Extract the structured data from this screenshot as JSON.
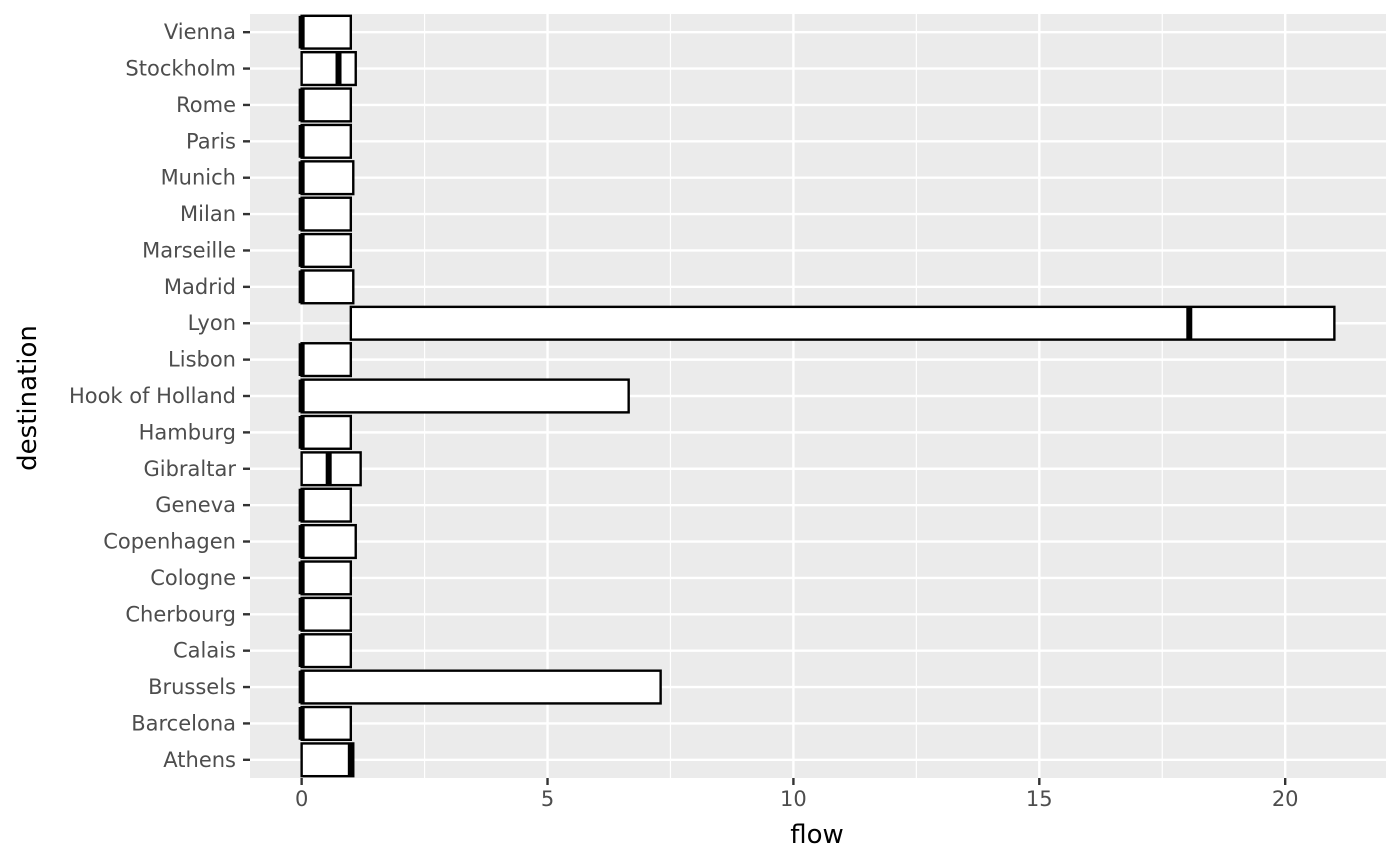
{
  "chart_data": {
    "type": "boxplot",
    "orientation": "horizontal",
    "xlabel": "flow",
    "ylabel": "destination",
    "xlim": [
      -1.05,
      22.05
    ],
    "x_ticks": [
      0,
      5,
      10,
      15,
      20
    ],
    "x_minor_ticks": [
      2.5,
      7.5,
      12.5,
      17.5
    ],
    "grid": true,
    "legend": "none",
    "categories": [
      "Athens",
      "Barcelona",
      "Brussels",
      "Calais",
      "Cherbourg",
      "Cologne",
      "Copenhagen",
      "Geneva",
      "Gibraltar",
      "Hamburg",
      "Hook of Holland",
      "Lisbon",
      "Lyon",
      "Madrid",
      "Marseille",
      "Milan",
      "Munich",
      "Paris",
      "Rome",
      "Stockholm",
      "Vienna"
    ],
    "boxes": [
      {
        "category": "Athens",
        "lower": 0.0,
        "median": 1.0,
        "upper": 1.05
      },
      {
        "category": "Barcelona",
        "lower": 0.0,
        "median": 0.0,
        "upper": 1.0
      },
      {
        "category": "Brussels",
        "lower": 0.0,
        "median": 0.0,
        "upper": 7.3
      },
      {
        "category": "Calais",
        "lower": 0.0,
        "median": 0.0,
        "upper": 1.0
      },
      {
        "category": "Cherbourg",
        "lower": 0.0,
        "median": 0.0,
        "upper": 1.0
      },
      {
        "category": "Cologne",
        "lower": 0.0,
        "median": 0.0,
        "upper": 1.0
      },
      {
        "category": "Copenhagen",
        "lower": 0.0,
        "median": 0.0,
        "upper": 1.1
      },
      {
        "category": "Geneva",
        "lower": 0.0,
        "median": 0.0,
        "upper": 1.0
      },
      {
        "category": "Gibraltar",
        "lower": 0.0,
        "median": 0.55,
        "upper": 1.2
      },
      {
        "category": "Hamburg",
        "lower": 0.0,
        "median": 0.0,
        "upper": 1.0
      },
      {
        "category": "Hook of Holland",
        "lower": 0.0,
        "median": 0.0,
        "upper": 6.65
      },
      {
        "category": "Lisbon",
        "lower": 0.0,
        "median": 0.0,
        "upper": 1.0
      },
      {
        "category": "Lyon",
        "lower": 1.0,
        "median": 18.05,
        "upper": 21.0
      },
      {
        "category": "Madrid",
        "lower": 0.0,
        "median": 0.0,
        "upper": 1.05
      },
      {
        "category": "Marseille",
        "lower": 0.0,
        "median": 0.0,
        "upper": 1.0
      },
      {
        "category": "Milan",
        "lower": 0.0,
        "median": 0.0,
        "upper": 1.0
      },
      {
        "category": "Munich",
        "lower": 0.0,
        "median": 0.0,
        "upper": 1.05
      },
      {
        "category": "Paris",
        "lower": 0.0,
        "median": 0.0,
        "upper": 1.0
      },
      {
        "category": "Rome",
        "lower": 0.0,
        "median": 0.0,
        "upper": 1.0
      },
      {
        "category": "Stockholm",
        "lower": 0.0,
        "median": 0.75,
        "upper": 1.1
      },
      {
        "category": "Vienna",
        "lower": 0.0,
        "median": 0.0,
        "upper": 1.0
      }
    ],
    "colors": {
      "panel_background": "#ebebeb",
      "gridline": "#ffffff",
      "box_fill": "#ffffff",
      "box_stroke": "#000000",
      "tick_text": "#4d4d4d",
      "axis_title": "#000000"
    }
  }
}
